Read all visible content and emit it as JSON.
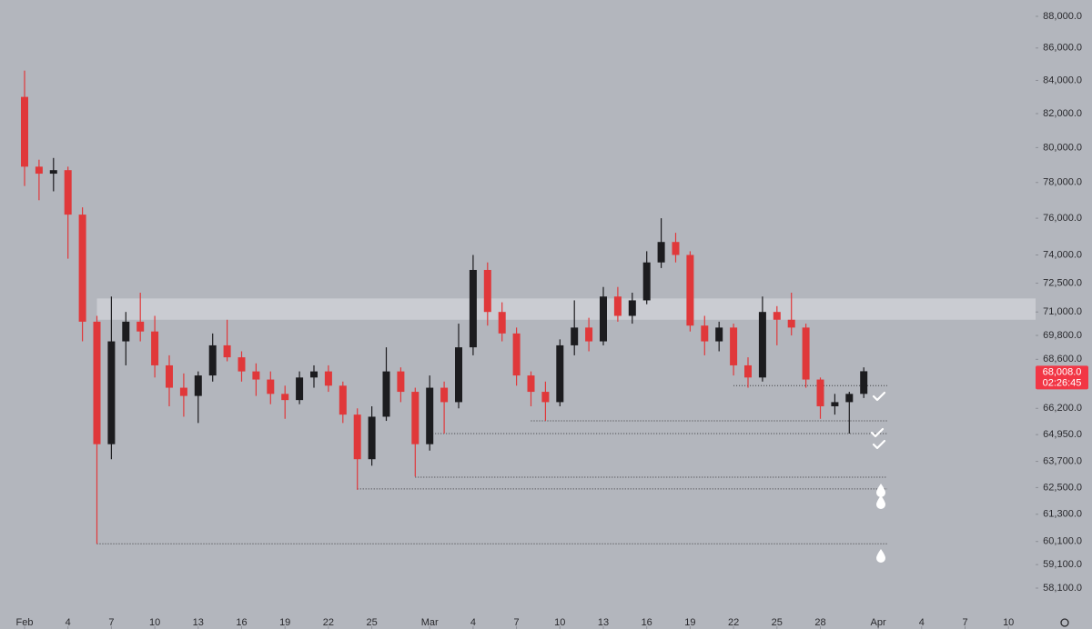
{
  "chart_data": {
    "type": "candlestick",
    "x": [
      "02-01",
      "02-02",
      "02-03",
      "02-04",
      "02-05",
      "02-06",
      "02-07",
      "02-08",
      "02-09",
      "02-10",
      "02-11",
      "02-12",
      "02-13",
      "02-14",
      "02-15",
      "02-16",
      "02-17",
      "02-18",
      "02-19",
      "02-20",
      "02-21",
      "02-22",
      "02-23",
      "02-24",
      "02-25",
      "02-26",
      "02-27",
      "02-28",
      "03-01",
      "03-02",
      "03-03",
      "03-04",
      "03-05",
      "03-06",
      "03-07",
      "03-08",
      "03-09",
      "03-10",
      "03-11",
      "03-12",
      "03-13",
      "03-14",
      "03-15",
      "03-16",
      "03-17",
      "03-18",
      "03-19",
      "03-20",
      "03-21",
      "03-22",
      "03-23",
      "03-24",
      "03-25",
      "03-26",
      "03-27",
      "03-28",
      "03-29",
      "03-30",
      "03-31"
    ],
    "open": [
      83000,
      78900,
      78500,
      78700,
      76200,
      70500,
      64500,
      69500,
      70500,
      70000,
      68300,
      67200,
      66800,
      67800,
      69300,
      68700,
      68000,
      67600,
      66900,
      66600,
      67700,
      68000,
      67300,
      65900,
      63800,
      65800,
      68000,
      67000,
      64500,
      67200,
      66500,
      69200,
      73200,
      71000,
      69900,
      67800,
      67000,
      66500,
      69300,
      70200,
      69500,
      71800,
      70800,
      71600,
      73600,
      74700,
      74000,
      70300,
      69500,
      70200,
      68300,
      67700,
      71000,
      70600,
      70200,
      67600,
      66300,
      66500,
      66900
    ],
    "high": [
      84600,
      79300,
      79400,
      78900,
      76600,
      70800,
      71800,
      71000,
      72000,
      70800,
      68800,
      67900,
      68000,
      69900,
      70600,
      69000,
      68400,
      68000,
      67300,
      68000,
      68300,
      68300,
      67500,
      66200,
      66300,
      69200,
      68200,
      67200,
      67800,
      67500,
      70400,
      74000,
      73600,
      71500,
      70200,
      68000,
      67500,
      69600,
      71600,
      70700,
      72300,
      72300,
      72000,
      74200,
      76000,
      75200,
      74200,
      70800,
      70500,
      70400,
      68700,
      71800,
      71300,
      72000,
      70400,
      67700,
      66900,
      67000,
      68200
    ],
    "low": [
      77800,
      77000,
      77500,
      73800,
      69500,
      60000,
      63800,
      68300,
      69500,
      67700,
      66300,
      65800,
      65500,
      67500,
      68500,
      67500,
      66800,
      66400,
      65700,
      66400,
      67200,
      67000,
      65500,
      62400,
      63500,
      65600,
      66500,
      63000,
      64200,
      65000,
      66200,
      68800,
      70300,
      69500,
      67300,
      66300,
      65600,
      66300,
      68800,
      69000,
      69300,
      70500,
      70400,
      71400,
      73300,
      73600,
      70000,
      68800,
      69000,
      67800,
      67200,
      67500,
      69300,
      69800,
      67200,
      65700,
      65900,
      65000,
      66700
    ],
    "close": [
      78900,
      78500,
      78700,
      76200,
      70500,
      64500,
      69500,
      70500,
      70000,
      68300,
      67200,
      66800,
      67800,
      69300,
      68700,
      68000,
      67600,
      66900,
      66600,
      67700,
      68000,
      67300,
      65900,
      63800,
      65800,
      68000,
      67000,
      64500,
      67200,
      66500,
      69200,
      73200,
      71000,
      69900,
      67800,
      67000,
      66500,
      69300,
      70200,
      69500,
      71800,
      70800,
      71600,
      73600,
      74700,
      74000,
      70300,
      69500,
      70200,
      68300,
      67700,
      71000,
      70600,
      70200,
      67600,
      66300,
      66500,
      66900,
      68008
    ],
    "up_color": "#1c1c1f",
    "down_color": "#e0383a",
    "log": true,
    "ylim": [
      56400,
      89050
    ],
    "yticks": [
      {
        "value": 88000,
        "label": "88,000.0"
      },
      {
        "value": 86000,
        "label": "86,000.0"
      },
      {
        "value": 84000,
        "label": "84,000.0"
      },
      {
        "value": 82000,
        "label": "82,000.0"
      },
      {
        "value": 80000,
        "label": "80,000.0"
      },
      {
        "value": 78000,
        "label": "78,000.0"
      },
      {
        "value": 76000,
        "label": "76,000.0"
      },
      {
        "value": 74000,
        "label": "74,000.0"
      },
      {
        "value": 72500,
        "label": "72,500.0"
      },
      {
        "value": 71000,
        "label": "71,000.0"
      },
      {
        "value": 69800,
        "label": "69,800.0"
      },
      {
        "value": 68600,
        "label": "68,600.0"
      },
      {
        "value": 66200,
        "label": "66,200.0"
      },
      {
        "value": 64950,
        "label": "64,950.0"
      },
      {
        "value": 63700,
        "label": "63,700.0"
      },
      {
        "value": 62500,
        "label": "62,500.0"
      },
      {
        "value": 61300,
        "label": "61,300.0"
      },
      {
        "value": 60100,
        "label": "60,100.0"
      },
      {
        "value": 59100,
        "label": "59,100.0"
      },
      {
        "value": 58100,
        "label": "58,100.0"
      }
    ],
    "xticks": [
      {
        "value": "02-01",
        "label": "Feb"
      },
      {
        "value": "02-04",
        "label": "4"
      },
      {
        "value": "02-07",
        "label": "7"
      },
      {
        "value": "02-10",
        "label": "10"
      },
      {
        "value": "02-13",
        "label": "13"
      },
      {
        "value": "02-16",
        "label": "16"
      },
      {
        "value": "02-19",
        "label": "19"
      },
      {
        "value": "02-22",
        "label": "22"
      },
      {
        "value": "02-25",
        "label": "25"
      },
      {
        "value": "03-01",
        "label": "Mar"
      },
      {
        "value": "03-04",
        "label": "4"
      },
      {
        "value": "03-07",
        "label": "7"
      },
      {
        "value": "03-10",
        "label": "10"
      },
      {
        "value": "03-13",
        "label": "13"
      },
      {
        "value": "03-16",
        "label": "16"
      },
      {
        "value": "03-19",
        "label": "19"
      },
      {
        "value": "03-22",
        "label": "22"
      },
      {
        "value": "03-25",
        "label": "25"
      },
      {
        "value": "03-28",
        "label": "28"
      },
      {
        "value": "04-01",
        "label": "Apr"
      },
      {
        "value": "04-04",
        "label": "4"
      },
      {
        "value": "04-07",
        "label": "7"
      },
      {
        "value": "04-10",
        "label": "10"
      }
    ],
    "zone": [
      70600,
      71700
    ],
    "zone_start": "02-06",
    "levels": [
      {
        "value": 67300,
        "start": "03-22"
      },
      {
        "value": 65600,
        "start": "03-08"
      },
      {
        "value": 65000,
        "start": "03-01"
      },
      {
        "value": 62970,
        "start": "02-28"
      },
      {
        "value": 62440,
        "start": "02-24"
      },
      {
        "value": 60000,
        "start": "02-06"
      }
    ],
    "last_price": 68008,
    "last_price_label": "68,008.0",
    "countdown": "02:26:45",
    "last_color": "#f23645"
  }
}
